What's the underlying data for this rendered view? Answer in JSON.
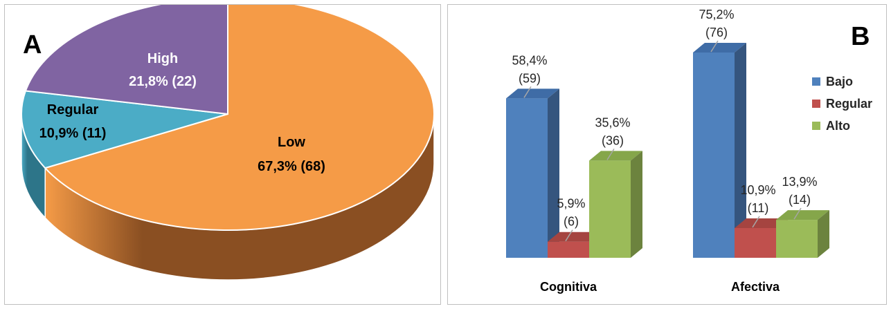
{
  "chart_data": [
    {
      "type": "pie",
      "panel_letter": "A",
      "title": "",
      "slices": [
        {
          "name": "Low",
          "percent": 67.3,
          "count": 68,
          "value_label": "67,3% (68)",
          "color": "#F59B47",
          "side_color": "#8A4F22",
          "label_color": "#000000"
        },
        {
          "name": "Regular",
          "percent": 10.9,
          "count": 11,
          "value_label": "10,9% (11)",
          "color": "#4BACC6",
          "side_color": "#2D7589",
          "label_color": "#000000"
        },
        {
          "name": "High",
          "percent": 21.8,
          "count": 22,
          "value_label": "21,8% (22)",
          "color": "#8064A2",
          "side_color": "#55406E",
          "label_color": "#FFFFFF"
        }
      ]
    },
    {
      "type": "bar",
      "panel_letter": "B",
      "title": "",
      "xlabel": "",
      "ylabel": "",
      "ylim": [
        0,
        80
      ],
      "legend_position": "right",
      "categories": [
        "Cognitiva",
        "Afectiva"
      ],
      "series": [
        {
          "name": "Bajo",
          "color": "#4F81BD",
          "side_color": "#35557E",
          "top_color": "#3F6CA6",
          "values": [
            58.4,
            75.2
          ],
          "counts": [
            59,
            76
          ],
          "pct_labels": [
            "58,4%",
            "75,2%"
          ],
          "count_labels": [
            "(59)",
            "(76)"
          ]
        },
        {
          "name": "Regular",
          "color": "#C0504D",
          "side_color": "#863735",
          "top_color": "#A54440",
          "values": [
            5.9,
            10.9
          ],
          "counts": [
            6,
            11
          ],
          "pct_labels": [
            "5,9%",
            "10,9%"
          ],
          "count_labels": [
            "(6)",
            "(11)"
          ]
        },
        {
          "name": "Alto",
          "color": "#9BBB59",
          "side_color": "#6C833E",
          "top_color": "#85A64A",
          "values": [
            35.6,
            13.9
          ],
          "counts": [
            36,
            14
          ],
          "pct_labels": [
            "35,6%",
            "13,9%"
          ],
          "count_labels": [
            "(36)",
            "(14)"
          ]
        }
      ]
    }
  ]
}
